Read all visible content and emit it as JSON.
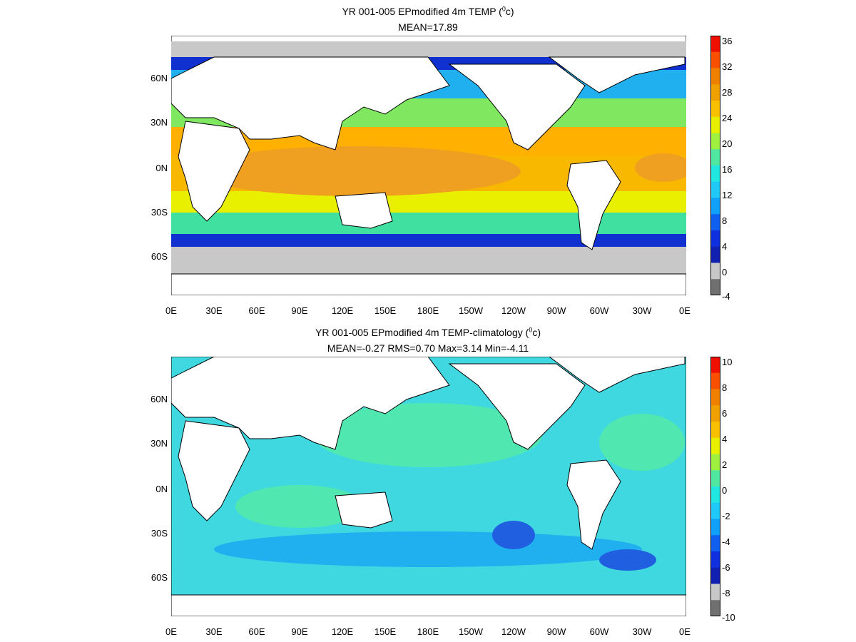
{
  "panels": [
    {
      "title_main": "YR 001-005 EPmodified 4m TEMP (",
      "title_sup": "0",
      "title_unit": "c)",
      "stats": "MEAN=17.89",
      "lat_labels": [
        "60N",
        "30N",
        "0N",
        "30S",
        "60S"
      ],
      "lon_labels": [
        "0E",
        "30E",
        "60E",
        "90E",
        "120E",
        "150E",
        "180E",
        "150W",
        "120W",
        "90W",
        "60W",
        "30W",
        "0E"
      ],
      "colorbar_labels": [
        "36",
        "32",
        "28",
        "24",
        "20",
        "16",
        "12",
        "8",
        "4",
        "0",
        "-4"
      ]
    },
    {
      "title_main": "YR 001-005 EPmodified 4m TEMP-climatology (",
      "title_sup": "0",
      "title_unit": "c)",
      "stats": "MEAN=-0.27   RMS=0.70   Max=3.14   Min=-4.11",
      "lat_labels": [
        "60N",
        "30N",
        "0N",
        "30S",
        "60S"
      ],
      "lon_labels": [
        "0E",
        "30E",
        "60E",
        "90E",
        "120E",
        "150E",
        "180E",
        "150W",
        "120W",
        "90W",
        "60W",
        "30W",
        "0E"
      ],
      "colorbar_labels": [
        "10",
        "8",
        "6",
        "4",
        "2",
        "0",
        "-2",
        "-4",
        "-6",
        "-8",
        "-10"
      ]
    }
  ],
  "colors": {
    "land": "#ffffff",
    "ice": "#c8c8c8",
    "warm_pool": "#f0a020",
    "tropics": "#ffb000",
    "subtropics": "#f0e000",
    "mid": "#40e0a0",
    "cool": "#20b0f0",
    "cold": "#1030d0",
    "anomaly_base": "#40d8e0",
    "anomaly_pos": "#50e8b0",
    "anomaly_neg": "#20b0f0",
    "anomaly_strong_neg": "#2060e0"
  },
  "colorbar_colors": [
    "#f01000",
    "#f85000",
    "#f08000",
    "#f0a000",
    "#f8c000",
    "#e8f000",
    "#a0f040",
    "#50e8a0",
    "#20e8e0",
    "#20c8f8",
    "#10a0f8",
    "#1060f0",
    "#1030e0",
    "#1020b0",
    "#c8c8c8",
    "#707070"
  ]
}
